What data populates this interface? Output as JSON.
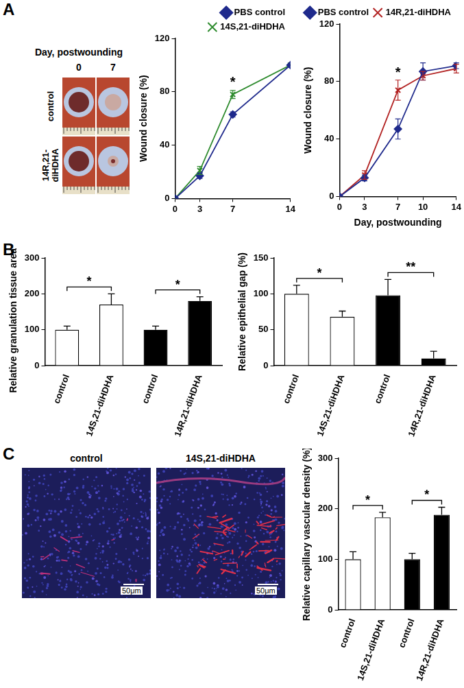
{
  "chart_data": [
    {
      "type": "line",
      "legend": "top",
      "grid": false,
      "x": [
        0,
        3,
        7,
        14
      ],
      "xlim": [
        0,
        14
      ],
      "xticks": [
        0,
        3,
        7,
        14
      ],
      "ylim": [
        0,
        120
      ],
      "yticks": [
        0,
        40,
        80,
        120
      ],
      "y_label": "Wound closure (%)",
      "series": [
        {
          "name": "PBS control",
          "color": "#1f2a8c",
          "marker": "diamond",
          "values": [
            0,
            17,
            63,
            100
          ],
          "errors": [
            null,
            2,
            2,
            null
          ]
        },
        {
          "name": "14S,21-diHDHA",
          "color": "#2e8b2e",
          "marker": "x",
          "values": [
            0,
            21,
            78,
            100
          ],
          "errors": [
            null,
            3,
            3,
            null
          ]
        }
      ],
      "annotations": [
        {
          "text": "*",
          "x": 7,
          "y": 87
        }
      ]
    },
    {
      "type": "line",
      "legend": "top",
      "grid": false,
      "x": [
        0,
        3,
        7,
        10,
        14
      ],
      "xlim": [
        0,
        14
      ],
      "xticks": [
        0,
        3,
        7,
        10,
        14
      ],
      "x_label": "Day, postwounding",
      "ylim": [
        0,
        120
      ],
      "yticks": [
        0,
        40,
        80,
        120
      ],
      "y_label": "Wound closure (%)",
      "series": [
        {
          "name": "PBS control",
          "color": "#1f2a8c",
          "marker": "diamond",
          "values": [
            0,
            13,
            47,
            87,
            91
          ],
          "errors": [
            null,
            2,
            7,
            6,
            2
          ]
        },
        {
          "name": "14R,21-diHDHA",
          "color": "#b22222",
          "marker": "x",
          "values": [
            0,
            15,
            74,
            84,
            89
          ],
          "errors": [
            null,
            3,
            7,
            3,
            3
          ]
        }
      ],
      "annotations": [
        {
          "text": "*",
          "x": 7,
          "y": 86
        }
      ]
    },
    {
      "type": "bar",
      "grid": false,
      "categories": [
        "control",
        "14S,21-diHDHA",
        "control",
        "14R,21-diHDHA"
      ],
      "values": [
        100,
        170,
        100,
        180
      ],
      "errors": [
        10,
        30,
        10,
        12
      ],
      "colors": [
        "#ffffff",
        "#ffffff",
        "#000000",
        "#000000"
      ],
      "ylim": [
        0,
        300
      ],
      "yticks": [
        0,
        100,
        200,
        300
      ],
      "y_label": "Relative granulation tissue area (%)",
      "annotations": [
        {
          "text": "*",
          "between": [
            0,
            1
          ]
        },
        {
          "text": "*",
          "between": [
            2,
            3
          ]
        }
      ]
    },
    {
      "type": "bar",
      "grid": false,
      "categories": [
        "control",
        "14S,21-diHDHA",
        "control",
        "14R,21-diHDHA"
      ],
      "values": [
        100,
        68,
        98,
        10
      ],
      "errors": [
        12,
        8,
        22,
        10
      ],
      "colors": [
        "#ffffff",
        "#ffffff",
        "#000000",
        "#000000"
      ],
      "ylim": [
        0,
        150
      ],
      "yticks": [
        0,
        50,
        100,
        150
      ],
      "y_label": "Relative epithelial gap (%)",
      "annotations": [
        {
          "text": "*",
          "between": [
            0,
            1
          ]
        },
        {
          "text": "**",
          "between": [
            2,
            3
          ]
        }
      ]
    },
    {
      "type": "bar",
      "grid": false,
      "categories": [
        "control",
        "14S,21-diHDHA",
        "control",
        "14R,21-diHDHA"
      ],
      "values": [
        100,
        183,
        100,
        188
      ],
      "errors": [
        15,
        10,
        12,
        15
      ],
      "colors": [
        "#ffffff",
        "#ffffff",
        "#000000",
        "#000000"
      ],
      "ylim": [
        0,
        300
      ],
      "yticks": [
        0,
        100,
        200,
        300
      ],
      "y_label": "Relative capillary vascular density (%)",
      "annotations": [
        {
          "text": "*",
          "between": [
            0,
            1
          ]
        },
        {
          "text": "*",
          "between": [
            2,
            3
          ]
        }
      ]
    }
  ],
  "panel_labels": [
    "A",
    "B",
    "C"
  ],
  "photos_A": {
    "header": "Day, postwounding",
    "columns": [
      "0",
      "7"
    ],
    "rows": [
      "control",
      "14R,21-diHDHA"
    ]
  },
  "photos_C": [
    {
      "label": "control",
      "scale_bar": "50μm"
    },
    {
      "label": "14S,21-diHDHA",
      "scale_bar": "50μm"
    }
  ]
}
